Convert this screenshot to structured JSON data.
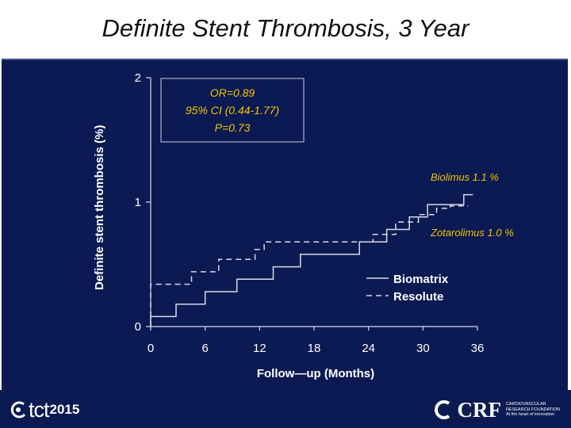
{
  "slide": {
    "title": "Definite Stent Thrombosis, 3 Year",
    "footer": {
      "left_logo_text": "tct",
      "left_logo_year": "2015",
      "right_logo_text": "CRF",
      "right_logo_tagline": [
        "CARDIOVASCULAR",
        "RESEARCH FOUNDATION",
        "At the heart of innovation"
      ]
    }
  },
  "colors": {
    "panel_bg": "#0b1a52",
    "line": "#d9d9e6",
    "text": "#ffffff"
  },
  "chart_data": {
    "type": "line",
    "title": "",
    "xlabel": "Follow—up  (Months)",
    "ylabel": "Definite  stent  thrombosis  (%)",
    "xlim": [
      0,
      36
    ],
    "ylim": [
      0,
      2
    ],
    "x_ticks": [
      0,
      6,
      12,
      18,
      24,
      30,
      36
    ],
    "x_tick_labels": [
      "0",
      "6",
      "12",
      "18",
      "24",
      "30",
      "36"
    ],
    "y_ticks": [
      0,
      1,
      2
    ],
    "y_tick_labels": [
      "0",
      "1",
      "2"
    ],
    "series": [
      {
        "name": "Biomatrix",
        "style": "solid",
        "points": [
          [
            0,
            0
          ],
          [
            0,
            0.08
          ],
          [
            2.8,
            0.08
          ],
          [
            2.8,
            0.18
          ],
          [
            6,
            0.18
          ],
          [
            6,
            0.28
          ],
          [
            9.5,
            0.28
          ],
          [
            9.5,
            0.38
          ],
          [
            13.5,
            0.38
          ],
          [
            13.5,
            0.48
          ],
          [
            16.5,
            0.48
          ],
          [
            16.5,
            0.58
          ],
          [
            23,
            0.58
          ],
          [
            23,
            0.68
          ],
          [
            26,
            0.68
          ],
          [
            26,
            0.78
          ],
          [
            28.5,
            0.78
          ],
          [
            28.5,
            0.88
          ],
          [
            30.5,
            0.88
          ],
          [
            30.5,
            0.98
          ],
          [
            34.5,
            0.98
          ],
          [
            34.5,
            1.06
          ],
          [
            35.5,
            1.06
          ]
        ]
      },
      {
        "name": "Resolute",
        "style": "dashed",
        "points": [
          [
            0,
            0
          ],
          [
            0,
            0.34
          ],
          [
            4.5,
            0.34
          ],
          [
            4.5,
            0.44
          ],
          [
            7.5,
            0.44
          ],
          [
            7.5,
            0.54
          ],
          [
            11.5,
            0.54
          ],
          [
            11.5,
            0.62
          ],
          [
            12.5,
            0.62
          ],
          [
            12.5,
            0.68
          ],
          [
            24.5,
            0.68
          ],
          [
            24.5,
            0.74
          ],
          [
            27,
            0.74
          ],
          [
            27,
            0.84
          ],
          [
            29.5,
            0.84
          ],
          [
            29.5,
            0.9
          ],
          [
            31.5,
            0.9
          ],
          [
            31.5,
            0.95
          ],
          [
            33,
            0.95
          ],
          [
            33,
            0.97
          ],
          [
            35,
            0.97
          ]
        ]
      }
    ],
    "legend": [
      {
        "name": "Biomatrix",
        "style": "solid"
      },
      {
        "name": "Resolute",
        "style": "dashed"
      }
    ],
    "legend_position": "bottom-right",
    "stats_box": [
      "OR=0.89",
      "95% CI (0.44-1.77)",
      "P=0.73"
    ],
    "annotations": [
      {
        "text": "Biolimus  1.1 %",
        "color": "#ffffff"
      },
      {
        "text": "Zotarolimus  1.0 %",
        "color": "#ffffff"
      }
    ]
  }
}
